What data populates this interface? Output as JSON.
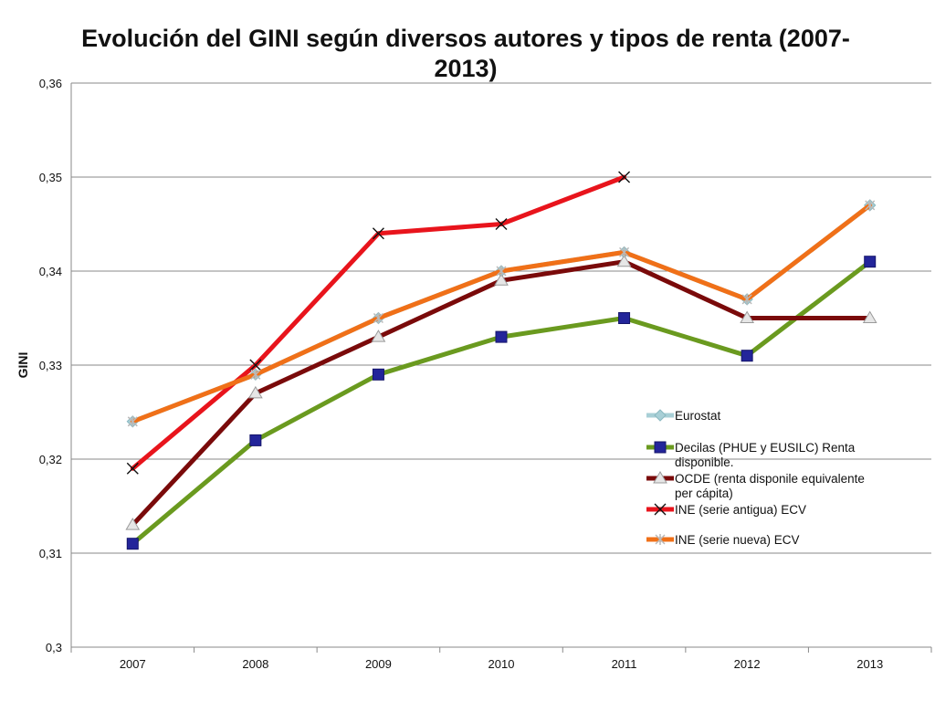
{
  "chart_data": {
    "type": "line",
    "title": "Evolución del GINI según diversos autores y tipos de renta (2007-2013)",
    "xlabel": "",
    "ylabel": "GINI",
    "x": [
      "2007",
      "2008",
      "2009",
      "2010",
      "2011",
      "2012",
      "2013"
    ],
    "ylim": [
      0.3,
      0.36
    ],
    "yticks": [
      "0,3",
      "0,31",
      "0,32",
      "0,33",
      "0,34",
      "0,35",
      "0,36"
    ],
    "grid": true,
    "legend_position": "right",
    "series": [
      {
        "name": "Eurostat",
        "color": "#a8cfd6",
        "marker": "diamond",
        "values": [
          0.324,
          0.329,
          0.335,
          0.34,
          0.342,
          0.337,
          0.347
        ]
      },
      {
        "name": "Decilas (PHUE y EUSILC) Renta disponible.",
        "color": "#6a9a1f",
        "marker": "square",
        "values": [
          0.311,
          0.322,
          0.329,
          0.333,
          0.335,
          0.331,
          0.341
        ]
      },
      {
        "name": "OCDE (renta disponile equivalente per cápita)",
        "color": "#7a0a0a",
        "marker": "triangle",
        "values": [
          0.313,
          0.327,
          0.333,
          0.339,
          0.341,
          0.335,
          0.335
        ]
      },
      {
        "name": "INE (serie antigua) ECV",
        "color": "#e8141c",
        "marker": "x",
        "values": [
          0.319,
          0.33,
          0.344,
          0.345,
          0.35,
          null,
          null
        ]
      },
      {
        "name": "INE (serie nueva) ECV",
        "color": "#f07018",
        "marker": "star",
        "values": [
          0.324,
          0.329,
          0.335,
          0.34,
          0.342,
          0.337,
          0.347
        ]
      }
    ]
  }
}
